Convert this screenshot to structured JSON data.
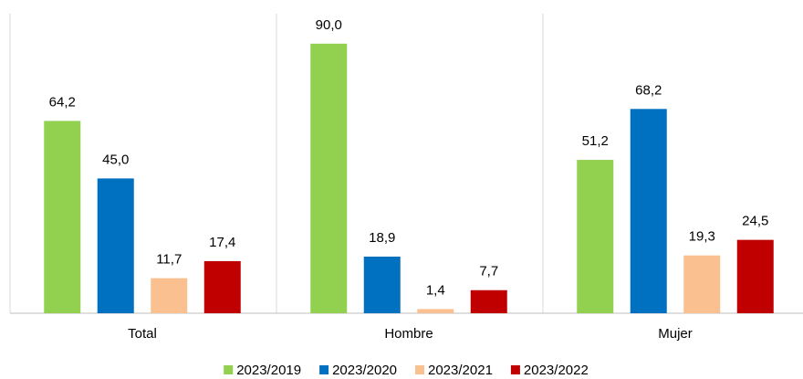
{
  "chart_data": {
    "type": "bar",
    "categories": [
      "Total",
      "Hombre",
      "Mujer"
    ],
    "series": [
      {
        "name": "2023/2019",
        "color": "#92d050",
        "values": [
          64.2,
          90.0,
          51.2
        ],
        "value_labels": [
          "64,2",
          "90,0",
          "51,2"
        ]
      },
      {
        "name": "2023/2020",
        "color": "#0070c0",
        "values": [
          45.0,
          18.9,
          68.2
        ],
        "value_labels": [
          "45,0",
          "18,9",
          "68,2"
        ]
      },
      {
        "name": "2023/2021",
        "color": "#fac090",
        "values": [
          11.7,
          1.4,
          19.3
        ],
        "value_labels": [
          "11,7",
          "1,4",
          "19,3"
        ]
      },
      {
        "name": "2023/2022",
        "color": "#c00000",
        "values": [
          17.4,
          7.7,
          24.5
        ],
        "value_labels": [
          "17,4",
          "7,7",
          "24,5"
        ]
      }
    ],
    "ylim": [
      0,
      100
    ],
    "legend": "bottom"
  }
}
